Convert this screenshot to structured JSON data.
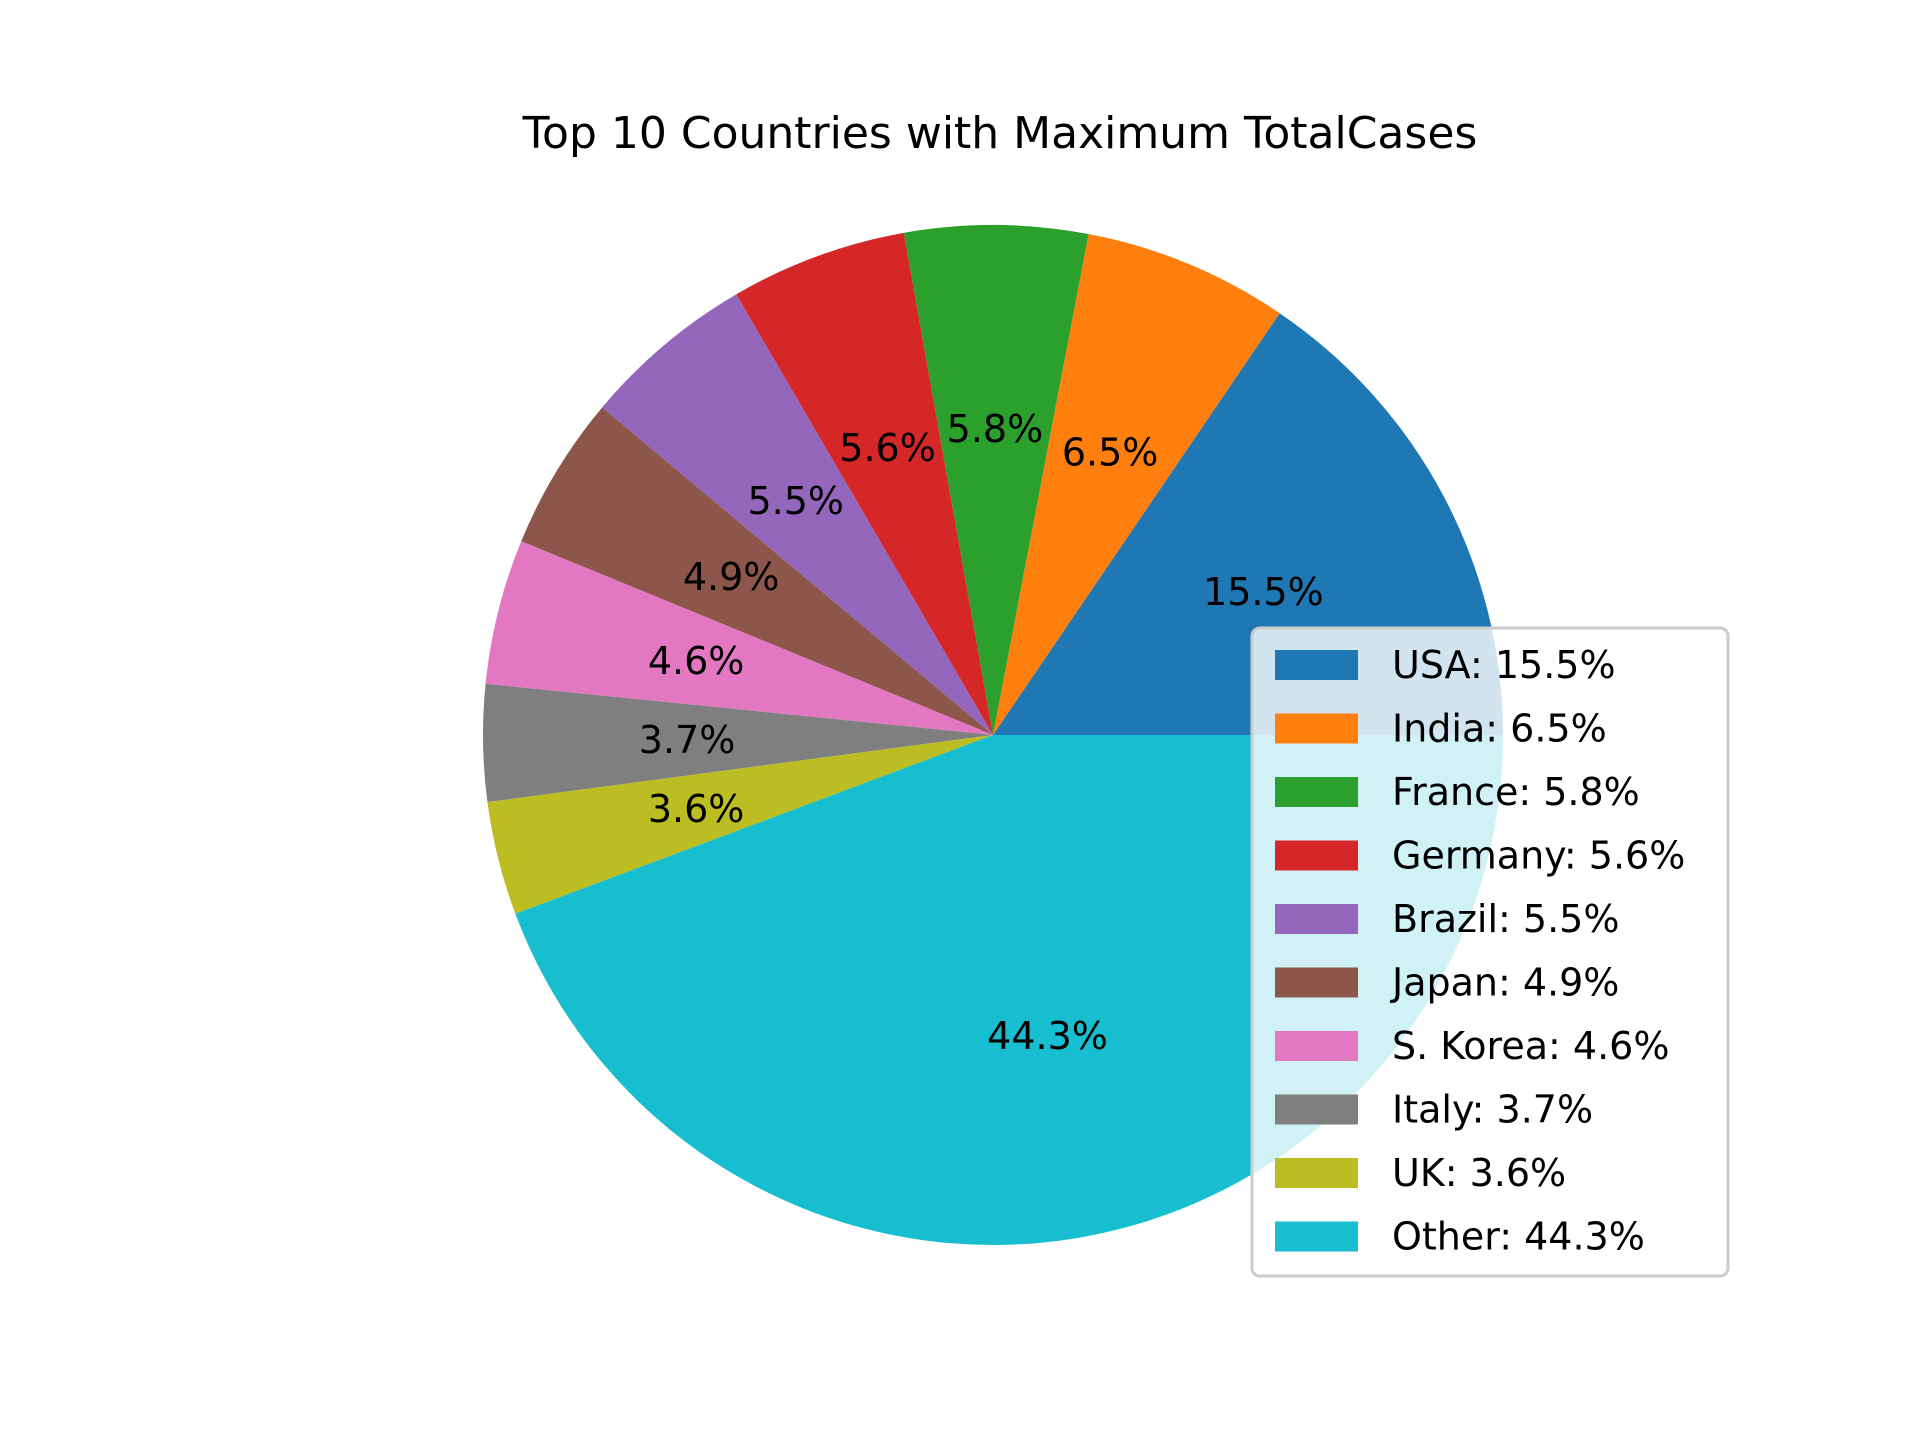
{
  "chart_data": {
    "type": "pie",
    "title": "Top 10 Countries with Maximum TotalCases",
    "start_angle_deg": 0,
    "direction": "counterclockwise",
    "legend_position": "center-right",
    "slices": [
      {
        "label": "USA",
        "value": 15.5,
        "pct_text": "15.5%",
        "legend_text": "USA: 15.5%",
        "color": "#1f77b4"
      },
      {
        "label": "India",
        "value": 6.5,
        "pct_text": "6.5%",
        "legend_text": "India: 6.5%",
        "color": "#ff7f0e"
      },
      {
        "label": "France",
        "value": 5.8,
        "pct_text": "5.8%",
        "legend_text": "France: 5.8%",
        "color": "#2ca02c"
      },
      {
        "label": "Germany",
        "value": 5.6,
        "pct_text": "5.6%",
        "legend_text": "Germany: 5.6%",
        "color": "#d62728"
      },
      {
        "label": "Brazil",
        "value": 5.5,
        "pct_text": "5.5%",
        "legend_text": "Brazil: 5.5%",
        "color": "#9467bd"
      },
      {
        "label": "Japan",
        "value": 4.9,
        "pct_text": "4.9%",
        "legend_text": "Japan: 4.9%",
        "color": "#8c564b"
      },
      {
        "label": "S. Korea",
        "value": 4.6,
        "pct_text": "4.6%",
        "legend_text": "S. Korea: 4.6%",
        "color": "#e377c2"
      },
      {
        "label": "Italy",
        "value": 3.7,
        "pct_text": "3.7%",
        "legend_text": "Italy: 3.7%",
        "color": "#7f7f7f"
      },
      {
        "label": "UK",
        "value": 3.6,
        "pct_text": "3.6%",
        "legend_text": "UK: 3.6%",
        "color": "#bcbd22"
      },
      {
        "label": "Other",
        "value": 44.3,
        "pct_text": "44.3%",
        "legend_text": "Other: 44.3%",
        "color": "#17becf"
      }
    ]
  }
}
